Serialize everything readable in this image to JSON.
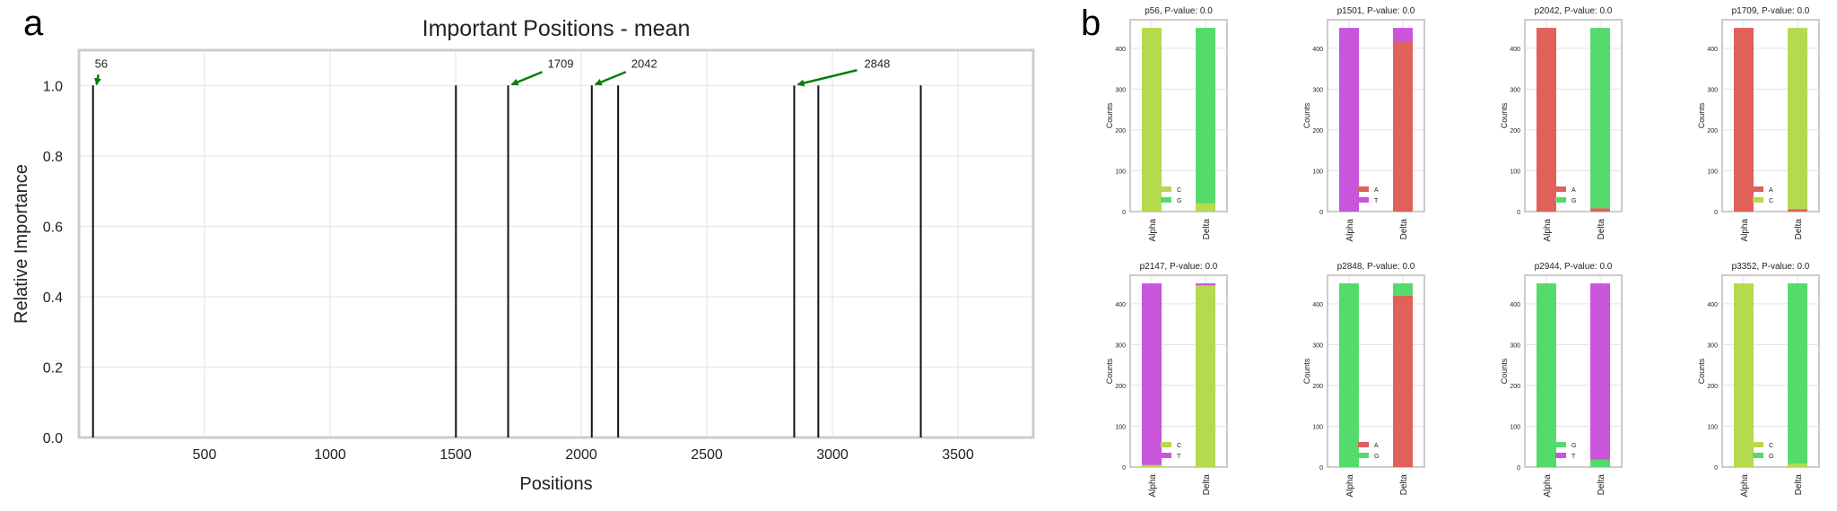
{
  "panel_labels": {
    "a": "a",
    "b": "b"
  },
  "colors": {
    "A": "#e0605a",
    "C": "#b5d94f",
    "G": "#55db6c",
    "T": "#c855db",
    "arrow": "#0a7d0a",
    "stem": "#111111"
  },
  "chart_data": [
    {
      "id": "importance",
      "type": "stem",
      "title": "Important Positions - mean",
      "xlabel": "Positions",
      "ylabel": "Relative Importance",
      "xlim": [
        0,
        3800
      ],
      "ylim": [
        0,
        1.1
      ],
      "xticks": [
        500,
        1000,
        1500,
        2000,
        2500,
        3000,
        3500
      ],
      "yticks": [
        0.0,
        0.2,
        0.4,
        0.6,
        0.8,
        1.0
      ],
      "grid": true,
      "x": [
        56,
        1501,
        1709,
        2042,
        2147,
        2848,
        2944,
        3352
      ],
      "y": [
        1,
        1,
        1,
        1,
        1,
        1,
        1,
        1
      ],
      "annotations": [
        {
          "text": "56",
          "x": 56,
          "y": 1.0
        },
        {
          "text": "1709",
          "x": 1709,
          "y": 1.0
        },
        {
          "text": "2042",
          "x": 2042,
          "y": 1.0
        },
        {
          "text": "2848",
          "x": 2848,
          "y": 1.0
        }
      ]
    },
    {
      "id": "p56",
      "type": "bar",
      "stacked": true,
      "title": "p56, P-value: 0.0",
      "ylabel": "Counts",
      "categories": [
        "Alpha",
        "Delta"
      ],
      "ylim": [
        0,
        470
      ],
      "yticks": [
        0,
        100,
        200,
        300,
        400
      ],
      "series": [
        {
          "name": "C",
          "values": [
            450,
            20
          ]
        },
        {
          "name": "G",
          "values": [
            0,
            430
          ]
        }
      ]
    },
    {
      "id": "p1501",
      "type": "bar",
      "stacked": true,
      "title": "p1501, P-value: 0.0",
      "ylabel": "Counts",
      "categories": [
        "Alpha",
        "Delta"
      ],
      "ylim": [
        0,
        470
      ],
      "yticks": [
        0,
        100,
        200,
        300,
        400
      ],
      "series": [
        {
          "name": "A",
          "values": [
            0,
            415
          ]
        },
        {
          "name": "T",
          "values": [
            450,
            35
          ]
        }
      ]
    },
    {
      "id": "p2042",
      "type": "bar",
      "stacked": true,
      "title": "p2042, P-value: 0.0",
      "ylabel": "Counts",
      "categories": [
        "Alpha",
        "Delta"
      ],
      "ylim": [
        0,
        470
      ],
      "yticks": [
        0,
        100,
        200,
        300,
        400
      ],
      "series": [
        {
          "name": "A",
          "values": [
            450,
            8
          ]
        },
        {
          "name": "G",
          "values": [
            0,
            442
          ]
        }
      ]
    },
    {
      "id": "p1709",
      "type": "bar",
      "stacked": true,
      "title": "p1709, P-value: 0.0",
      "ylabel": "Counts",
      "categories": [
        "Alpha",
        "Delta"
      ],
      "ylim": [
        0,
        470
      ],
      "yticks": [
        0,
        100,
        200,
        300,
        400
      ],
      "series": [
        {
          "name": "A",
          "values": [
            450,
            6
          ]
        },
        {
          "name": "C",
          "values": [
            0,
            444
          ]
        }
      ]
    },
    {
      "id": "p2147",
      "type": "bar",
      "stacked": true,
      "title": "p2147, P-value: 0.0",
      "ylabel": "Counts",
      "categories": [
        "Alpha",
        "Delta"
      ],
      "ylim": [
        0,
        470
      ],
      "yticks": [
        0,
        100,
        200,
        300,
        400
      ],
      "series": [
        {
          "name": "C",
          "values": [
            5,
            445
          ]
        },
        {
          "name": "T",
          "values": [
            445,
            5
          ]
        }
      ]
    },
    {
      "id": "p2848",
      "type": "bar",
      "stacked": true,
      "title": "p2848, P-value: 0.0",
      "ylabel": "Counts",
      "categories": [
        "Alpha",
        "Delta"
      ],
      "ylim": [
        0,
        470
      ],
      "yticks": [
        0,
        100,
        200,
        300,
        400
      ],
      "series": [
        {
          "name": "A",
          "values": [
            0,
            420
          ]
        },
        {
          "name": "G",
          "values": [
            450,
            30
          ]
        }
      ]
    },
    {
      "id": "p2944",
      "type": "bar",
      "stacked": true,
      "title": "p2944, P-value: 0.0",
      "ylabel": "Counts",
      "categories": [
        "Alpha",
        "Delta"
      ],
      "ylim": [
        0,
        470
      ],
      "yticks": [
        0,
        100,
        200,
        300,
        400
      ],
      "series": [
        {
          "name": "G",
          "values": [
            450,
            18
          ]
        },
        {
          "name": "T",
          "values": [
            0,
            432
          ]
        }
      ]
    },
    {
      "id": "p3352",
      "type": "bar",
      "stacked": true,
      "title": "p3352, P-value: 0.0",
      "ylabel": "Counts",
      "categories": [
        "Alpha",
        "Delta"
      ],
      "ylim": [
        0,
        470
      ],
      "yticks": [
        0,
        100,
        200,
        300,
        400
      ],
      "series": [
        {
          "name": "C",
          "values": [
            450,
            8
          ]
        },
        {
          "name": "G",
          "values": [
            0,
            442
          ]
        }
      ]
    }
  ]
}
